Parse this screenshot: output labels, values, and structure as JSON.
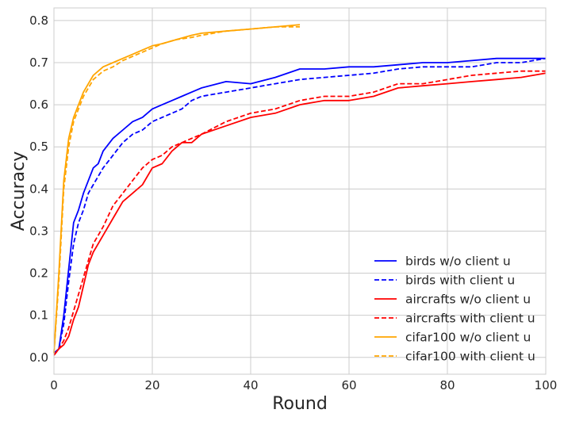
{
  "chart_data": {
    "type": "line",
    "title": "",
    "xlabel": "Round",
    "ylabel": "Accuracy",
    "xlim": [
      0,
      100
    ],
    "ylim": [
      -0.04,
      0.83
    ],
    "xticks": [
      "0",
      "20",
      "40",
      "60",
      "80",
      "100"
    ],
    "yticks": [
      "0.0",
      "0.1",
      "0.2",
      "0.3",
      "0.4",
      "0.5",
      "0.6",
      "0.7",
      "0.8"
    ],
    "grid": true,
    "legend_position": "bottom-right",
    "series": [
      {
        "name": "birds w/o client u",
        "color": "#0000ff",
        "dash": "solid",
        "x": [
          0,
          1,
          2,
          3,
          4,
          5,
          6,
          7,
          8,
          9,
          10,
          12,
          14,
          16,
          18,
          20,
          22,
          24,
          26,
          28,
          30,
          35,
          40,
          45,
          50,
          55,
          60,
          65,
          70,
          75,
          80,
          85,
          90,
          95,
          100
        ],
        "y": [
          0.01,
          0.02,
          0.1,
          0.21,
          0.32,
          0.35,
          0.39,
          0.42,
          0.45,
          0.46,
          0.49,
          0.52,
          0.54,
          0.56,
          0.57,
          0.59,
          0.6,
          0.61,
          0.62,
          0.63,
          0.64,
          0.655,
          0.65,
          0.665,
          0.685,
          0.685,
          0.69,
          0.69,
          0.695,
          0.7,
          0.7,
          0.705,
          0.71,
          0.71,
          0.71
        ]
      },
      {
        "name": "birds with client u",
        "color": "#0000ff",
        "dash": "dashed",
        "x": [
          0,
          1,
          2,
          3,
          4,
          5,
          6,
          7,
          8,
          9,
          10,
          12,
          14,
          16,
          18,
          20,
          22,
          24,
          26,
          28,
          30,
          35,
          40,
          45,
          50,
          55,
          60,
          65,
          70,
          75,
          80,
          85,
          90,
          95,
          100
        ],
        "y": [
          0.01,
          0.02,
          0.08,
          0.18,
          0.27,
          0.32,
          0.35,
          0.39,
          0.41,
          0.43,
          0.45,
          0.48,
          0.51,
          0.53,
          0.54,
          0.56,
          0.57,
          0.58,
          0.59,
          0.61,
          0.62,
          0.63,
          0.64,
          0.65,
          0.66,
          0.665,
          0.67,
          0.675,
          0.685,
          0.69,
          0.69,
          0.69,
          0.7,
          0.7,
          0.71
        ]
      },
      {
        "name": "aircrafts w/o client u",
        "color": "#ff0000",
        "dash": "solid",
        "x": [
          0,
          1,
          2,
          3,
          4,
          5,
          6,
          7,
          8,
          9,
          10,
          12,
          14,
          16,
          18,
          20,
          22,
          24,
          26,
          28,
          30,
          35,
          40,
          45,
          50,
          55,
          60,
          65,
          70,
          75,
          80,
          85,
          90,
          95,
          100
        ],
        "y": [
          0.005,
          0.02,
          0.03,
          0.05,
          0.09,
          0.12,
          0.17,
          0.22,
          0.25,
          0.27,
          0.29,
          0.33,
          0.37,
          0.39,
          0.41,
          0.45,
          0.46,
          0.49,
          0.51,
          0.51,
          0.53,
          0.55,
          0.57,
          0.58,
          0.6,
          0.61,
          0.61,
          0.62,
          0.64,
          0.645,
          0.65,
          0.655,
          0.66,
          0.665,
          0.675
        ]
      },
      {
        "name": "aircrafts with client u",
        "color": "#ff0000",
        "dash": "dashed",
        "x": [
          0,
          1,
          2,
          3,
          4,
          5,
          6,
          7,
          8,
          9,
          10,
          12,
          14,
          16,
          18,
          20,
          22,
          24,
          26,
          28,
          30,
          35,
          40,
          45,
          50,
          55,
          60,
          65,
          70,
          75,
          80,
          85,
          90,
          95,
          100
        ],
        "y": [
          0.005,
          0.02,
          0.04,
          0.07,
          0.11,
          0.15,
          0.19,
          0.23,
          0.27,
          0.29,
          0.31,
          0.36,
          0.39,
          0.42,
          0.45,
          0.47,
          0.48,
          0.5,
          0.51,
          0.52,
          0.53,
          0.56,
          0.58,
          0.59,
          0.61,
          0.62,
          0.62,
          0.63,
          0.65,
          0.65,
          0.66,
          0.67,
          0.675,
          0.68,
          0.68
        ]
      },
      {
        "name": "cifar100 w/o client u",
        "color": "#ffa500",
        "dash": "solid",
        "x": [
          0,
          1,
          2,
          3,
          4,
          5,
          6,
          7,
          8,
          9,
          10,
          12,
          14,
          16,
          18,
          20,
          22,
          25,
          28,
          30,
          35,
          40,
          45,
          50
        ],
        "y": [
          0.01,
          0.2,
          0.42,
          0.52,
          0.57,
          0.6,
          0.63,
          0.65,
          0.67,
          0.68,
          0.69,
          0.7,
          0.71,
          0.72,
          0.73,
          0.74,
          0.745,
          0.755,
          0.765,
          0.77,
          0.775,
          0.78,
          0.785,
          0.79
        ]
      },
      {
        "name": "cifar100 with client u",
        "color": "#ffa500",
        "dash": "dashed",
        "x": [
          0,
          1,
          2,
          3,
          4,
          5,
          6,
          7,
          8,
          9,
          10,
          12,
          14,
          16,
          18,
          20,
          22,
          25,
          28,
          30,
          35,
          40,
          45,
          50
        ],
        "y": [
          0.01,
          0.18,
          0.4,
          0.5,
          0.56,
          0.59,
          0.62,
          0.64,
          0.66,
          0.67,
          0.68,
          0.69,
          0.705,
          0.715,
          0.725,
          0.735,
          0.745,
          0.755,
          0.76,
          0.765,
          0.775,
          0.78,
          0.785,
          0.785
        ]
      }
    ]
  }
}
